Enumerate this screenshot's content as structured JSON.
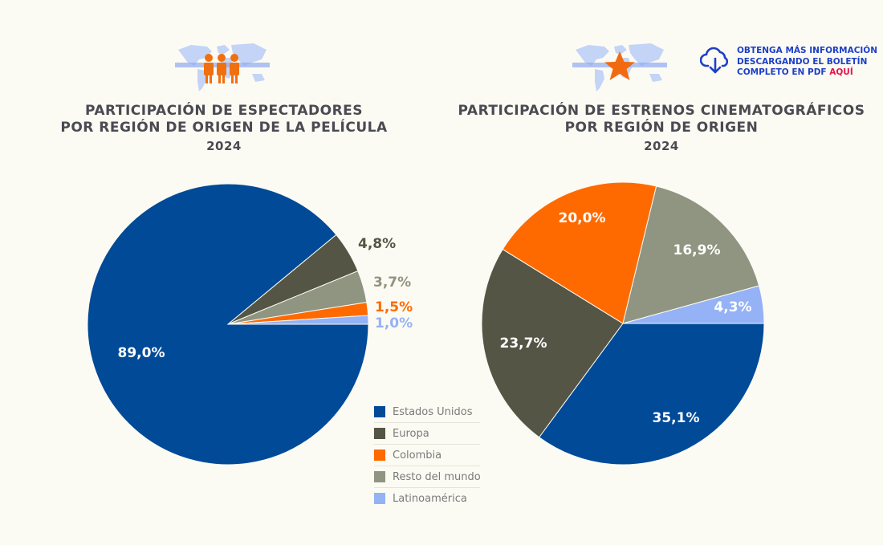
{
  "download": {
    "line1": "OBTENGA MÁS INFORMACIÓN",
    "line2": "DESCARGANDO EL BOLETÍN",
    "line3_prefix": "COMPLETO EN PDF ",
    "line3_link": "AQUÍ"
  },
  "legend": [
    {
      "label": "Estados Unidos",
      "color": "#004a98"
    },
    {
      "label": "Europa",
      "color": "#545545"
    },
    {
      "label": "Colombia",
      "color": "#ff6a00"
    },
    {
      "label": "Resto del mundo",
      "color": "#8f9580"
    },
    {
      "label": "Latinoamérica",
      "color": "#94b2f5"
    }
  ],
  "chart_data": [
    {
      "type": "pie",
      "title_line1": "PARTICIPACIÓN DE ESPECTADORES",
      "title_line2": "POR REGIÓN DE ORIGEN DE LA PELÍCULA",
      "subtitle": "2024",
      "categories": [
        "Estados Unidos",
        "Europa",
        "Resto del mundo",
        "Colombia",
        "Latinoamérica"
      ],
      "values": [
        89.0,
        4.8,
        3.7,
        1.5,
        1.0
      ],
      "labels": [
        "89,0%",
        "4,8%",
        "3,7%",
        "1,5%",
        "1,0%"
      ],
      "colors": [
        "#004a98",
        "#545545",
        "#8f9580",
        "#ff6a00",
        "#94b2f5"
      ],
      "label_colors": [
        "#ffffff",
        "#545545",
        "#8f9580",
        "#ff6a00",
        "#94b2f5"
      ]
    },
    {
      "type": "pie",
      "title_line1": "PARTICIPACIÓN DE ESTRENOS CINEMATOGRÁFICOS",
      "title_line2": "POR REGIÓN DE ORIGEN",
      "subtitle": "2024",
      "categories": [
        "Estados Unidos",
        "Europa",
        "Colombia",
        "Resto del mundo",
        "Latinoamérica"
      ],
      "values": [
        35.1,
        23.7,
        20.0,
        16.9,
        4.3
      ],
      "labels": [
        "35,1%",
        "23,7%",
        "20,0%",
        "16,9%",
        "4,3%"
      ],
      "colors": [
        "#004a98",
        "#545545",
        "#ff6a00",
        "#8f9580",
        "#94b2f5"
      ],
      "label_colors": [
        "#ffffff",
        "#ffffff",
        "#ffffff",
        "#ffffff",
        "#ffffff"
      ]
    }
  ]
}
